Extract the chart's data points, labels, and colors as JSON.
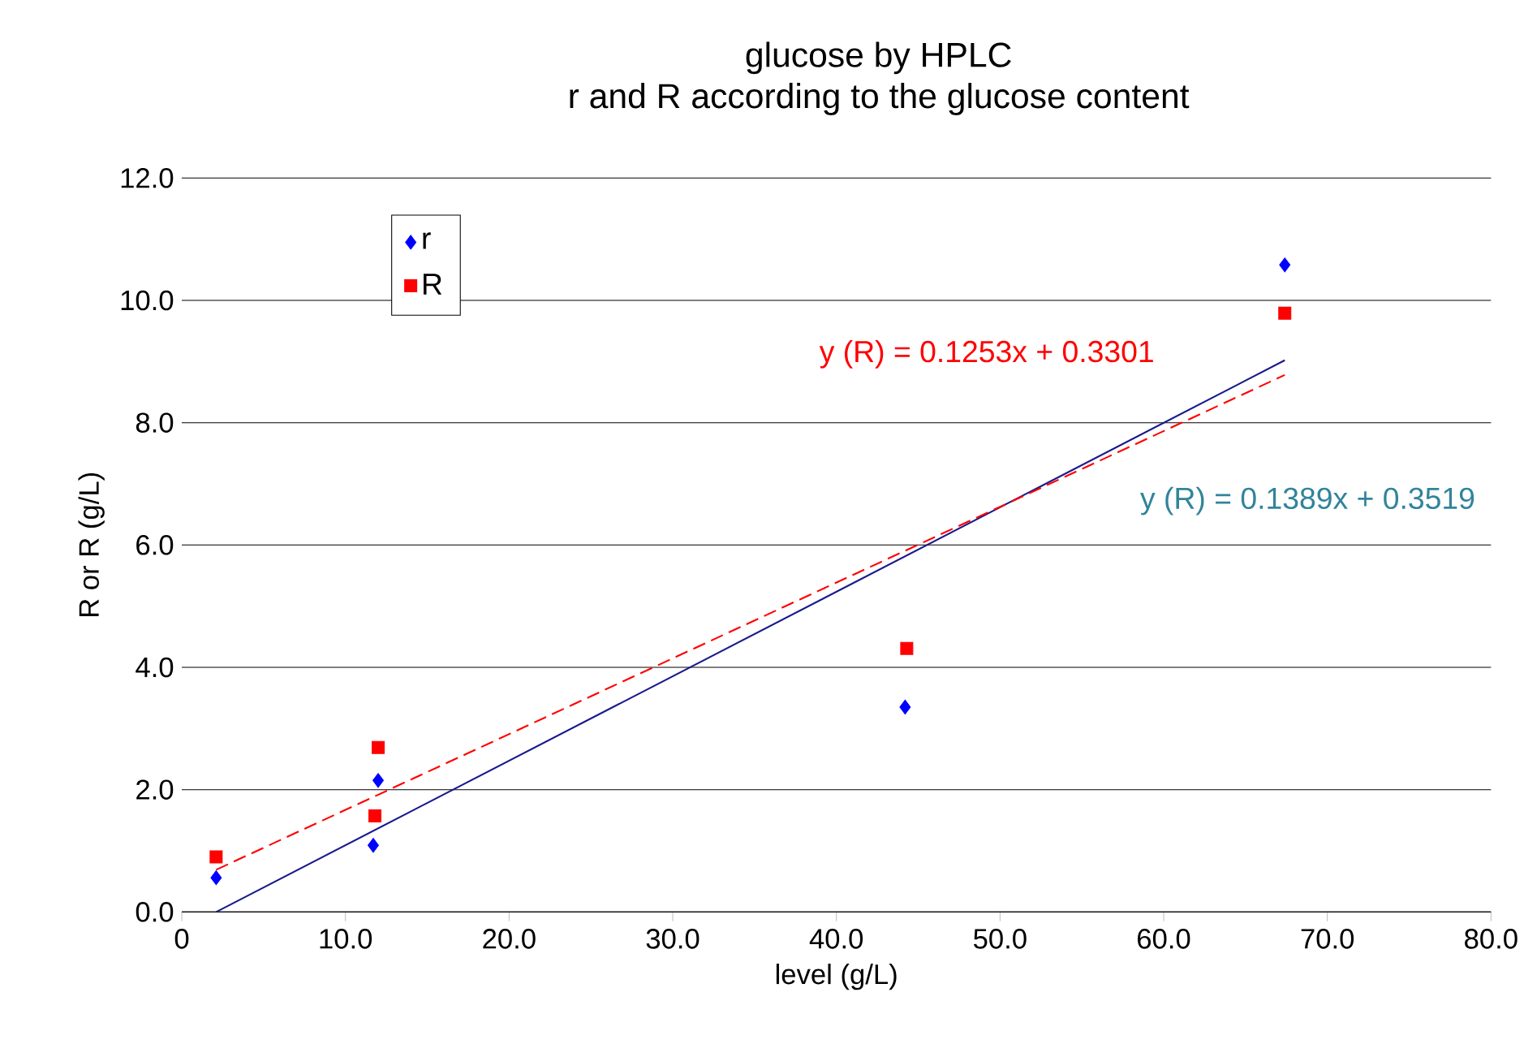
{
  "chart_data": {
    "type": "scatter",
    "title": "glucose by HPLC",
    "subtitle": "r and R according to the glucose content",
    "xlabel": "level (g/L)",
    "ylabel": "R or R (g/L)",
    "xlim": [
      0,
      80
    ],
    "ylim": [
      0,
      12
    ],
    "xticks": [
      {
        "value": 0,
        "label": "0"
      },
      {
        "value": 10,
        "label": "10.0"
      },
      {
        "value": 20,
        "label": "20.0"
      },
      {
        "value": 30,
        "label": "30.0"
      },
      {
        "value": 40,
        "label": "40.0"
      },
      {
        "value": 50,
        "label": "50.0"
      },
      {
        "value": 60,
        "label": "60.0"
      },
      {
        "value": 70,
        "label": "70.0"
      },
      {
        "value": 80,
        "label": "80.0"
      }
    ],
    "yticks": [
      {
        "value": 0,
        "label": "0.0"
      },
      {
        "value": 2,
        "label": "2.0"
      },
      {
        "value": 4,
        "label": "4.0"
      },
      {
        "value": 6,
        "label": "6.0"
      },
      {
        "value": 8,
        "label": "8.0"
      },
      {
        "value": 10,
        "label": "10.0"
      },
      {
        "value": 12,
        "label": "12.0"
      }
    ],
    "grid": "y",
    "legend": "top left",
    "series": [
      {
        "name": "r",
        "marker": "diamond",
        "color": "#0000ff",
        "x": [
          2.1,
          11.7,
          12.0,
          44.2,
          67.4
        ],
        "values": [
          0.56,
          1.09,
          2.15,
          3.35,
          10.58
        ]
      },
      {
        "name": "R",
        "marker": "square",
        "color": "#ff0000",
        "x": [
          2.1,
          11.8,
          12.0,
          44.3,
          67.4
        ],
        "values": [
          0.9,
          1.57,
          2.69,
          4.31,
          9.79
        ]
      },
      {
        "type": "line",
        "marker": "none",
        "line_style": "solid",
        "color": "#1a1a8c",
        "x": [
          2.1,
          67.4
        ],
        "values": [
          0.0,
          9.02
        ]
      },
      {
        "type": "line",
        "marker": "none",
        "line_style": "dashed",
        "color": "#ff0000",
        "x": [
          2.1,
          67.4
        ],
        "values": [
          0.69,
          8.78
        ]
      }
    ],
    "annotations": [
      "y (R) = 0.1253x + 0.3301",
      "y (R) = 0.1389x + 0.3519"
    ]
  }
}
